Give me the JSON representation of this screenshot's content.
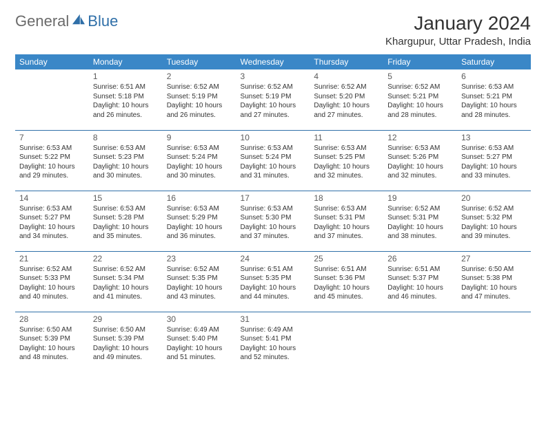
{
  "logo": {
    "text1": "General",
    "text2": "Blue"
  },
  "title": "January 2024",
  "location": "Khargupur, Uttar Pradesh, India",
  "colors": {
    "header_bg": "#3a87c7",
    "header_text": "#ffffff",
    "border": "#2f6fa8",
    "logo_gray": "#6a6a6a",
    "logo_blue": "#2f6fa8"
  },
  "weekdays": [
    "Sunday",
    "Monday",
    "Tuesday",
    "Wednesday",
    "Thursday",
    "Friday",
    "Saturday"
  ],
  "weeks": [
    [
      null,
      {
        "n": "1",
        "sr": "6:51 AM",
        "ss": "5:18 PM",
        "dl": "10 hours and 26 minutes."
      },
      {
        "n": "2",
        "sr": "6:52 AM",
        "ss": "5:19 PM",
        "dl": "10 hours and 26 minutes."
      },
      {
        "n": "3",
        "sr": "6:52 AM",
        "ss": "5:19 PM",
        "dl": "10 hours and 27 minutes."
      },
      {
        "n": "4",
        "sr": "6:52 AM",
        "ss": "5:20 PM",
        "dl": "10 hours and 27 minutes."
      },
      {
        "n": "5",
        "sr": "6:52 AM",
        "ss": "5:21 PM",
        "dl": "10 hours and 28 minutes."
      },
      {
        "n": "6",
        "sr": "6:53 AM",
        "ss": "5:21 PM",
        "dl": "10 hours and 28 minutes."
      }
    ],
    [
      {
        "n": "7",
        "sr": "6:53 AM",
        "ss": "5:22 PM",
        "dl": "10 hours and 29 minutes."
      },
      {
        "n": "8",
        "sr": "6:53 AM",
        "ss": "5:23 PM",
        "dl": "10 hours and 30 minutes."
      },
      {
        "n": "9",
        "sr": "6:53 AM",
        "ss": "5:24 PM",
        "dl": "10 hours and 30 minutes."
      },
      {
        "n": "10",
        "sr": "6:53 AM",
        "ss": "5:24 PM",
        "dl": "10 hours and 31 minutes."
      },
      {
        "n": "11",
        "sr": "6:53 AM",
        "ss": "5:25 PM",
        "dl": "10 hours and 32 minutes."
      },
      {
        "n": "12",
        "sr": "6:53 AM",
        "ss": "5:26 PM",
        "dl": "10 hours and 32 minutes."
      },
      {
        "n": "13",
        "sr": "6:53 AM",
        "ss": "5:27 PM",
        "dl": "10 hours and 33 minutes."
      }
    ],
    [
      {
        "n": "14",
        "sr": "6:53 AM",
        "ss": "5:27 PM",
        "dl": "10 hours and 34 minutes."
      },
      {
        "n": "15",
        "sr": "6:53 AM",
        "ss": "5:28 PM",
        "dl": "10 hours and 35 minutes."
      },
      {
        "n": "16",
        "sr": "6:53 AM",
        "ss": "5:29 PM",
        "dl": "10 hours and 36 minutes."
      },
      {
        "n": "17",
        "sr": "6:53 AM",
        "ss": "5:30 PM",
        "dl": "10 hours and 37 minutes."
      },
      {
        "n": "18",
        "sr": "6:53 AM",
        "ss": "5:31 PM",
        "dl": "10 hours and 37 minutes."
      },
      {
        "n": "19",
        "sr": "6:52 AM",
        "ss": "5:31 PM",
        "dl": "10 hours and 38 minutes."
      },
      {
        "n": "20",
        "sr": "6:52 AM",
        "ss": "5:32 PM",
        "dl": "10 hours and 39 minutes."
      }
    ],
    [
      {
        "n": "21",
        "sr": "6:52 AM",
        "ss": "5:33 PM",
        "dl": "10 hours and 40 minutes."
      },
      {
        "n": "22",
        "sr": "6:52 AM",
        "ss": "5:34 PM",
        "dl": "10 hours and 41 minutes."
      },
      {
        "n": "23",
        "sr": "6:52 AM",
        "ss": "5:35 PM",
        "dl": "10 hours and 43 minutes."
      },
      {
        "n": "24",
        "sr": "6:51 AM",
        "ss": "5:35 PM",
        "dl": "10 hours and 44 minutes."
      },
      {
        "n": "25",
        "sr": "6:51 AM",
        "ss": "5:36 PM",
        "dl": "10 hours and 45 minutes."
      },
      {
        "n": "26",
        "sr": "6:51 AM",
        "ss": "5:37 PM",
        "dl": "10 hours and 46 minutes."
      },
      {
        "n": "27",
        "sr": "6:50 AM",
        "ss": "5:38 PM",
        "dl": "10 hours and 47 minutes."
      }
    ],
    [
      {
        "n": "28",
        "sr": "6:50 AM",
        "ss": "5:39 PM",
        "dl": "10 hours and 48 minutes."
      },
      {
        "n": "29",
        "sr": "6:50 AM",
        "ss": "5:39 PM",
        "dl": "10 hours and 49 minutes."
      },
      {
        "n": "30",
        "sr": "6:49 AM",
        "ss": "5:40 PM",
        "dl": "10 hours and 51 minutes."
      },
      {
        "n": "31",
        "sr": "6:49 AM",
        "ss": "5:41 PM",
        "dl": "10 hours and 52 minutes."
      },
      null,
      null,
      null
    ]
  ],
  "labels": {
    "sunrise": "Sunrise:",
    "sunset": "Sunset:",
    "daylight": "Daylight:"
  }
}
